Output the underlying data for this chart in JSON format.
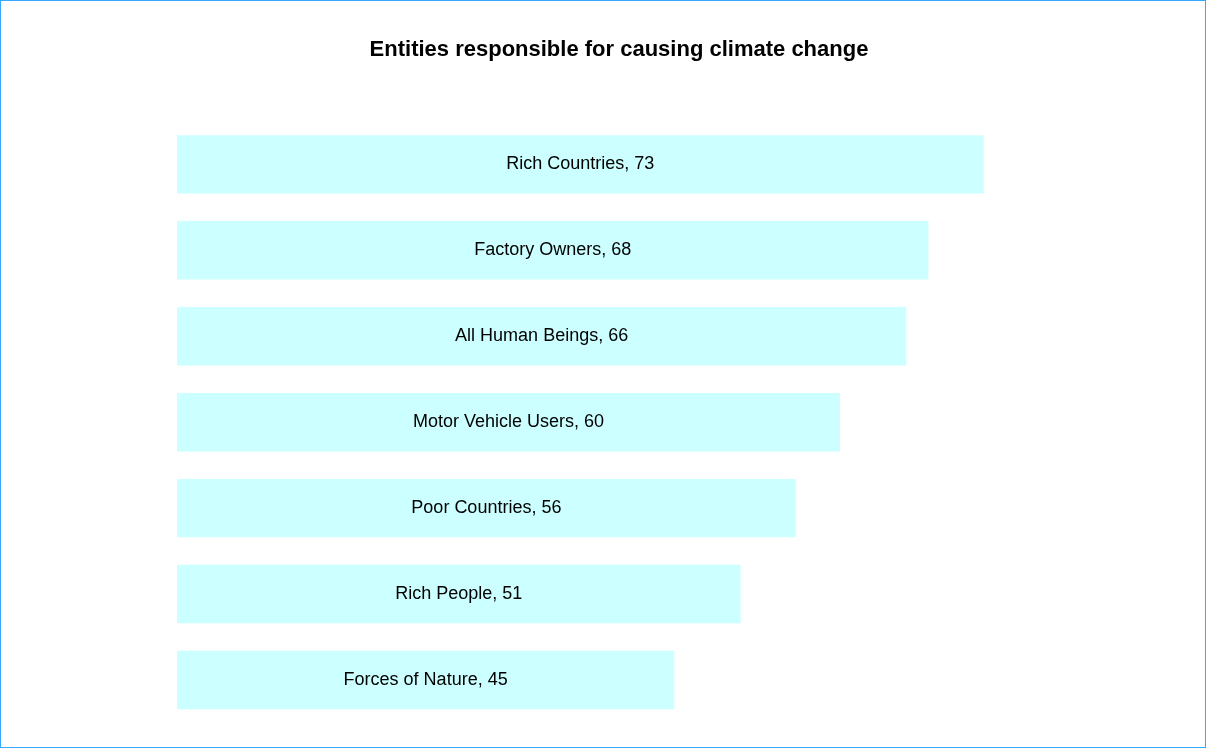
{
  "chart_data": {
    "type": "bar",
    "orientation": "horizontal",
    "title": "Entities responsible for causing climate change",
    "categories": [
      null,
      null,
      null,
      null,
      null,
      null,
      null
    ],
    "values": [
      73,
      68,
      66,
      60,
      56,
      51,
      45
    ],
    "value_labels": [
      "Rich Countries, 73",
      "Factory Owners, 68",
      "All Human Beings, 66",
      "Motor Vehicle Users, 60",
      "Poor Countries, 56",
      "Rich People, 51",
      "Forces of Nature, 45"
    ],
    "color": "#ccffff"
  }
}
